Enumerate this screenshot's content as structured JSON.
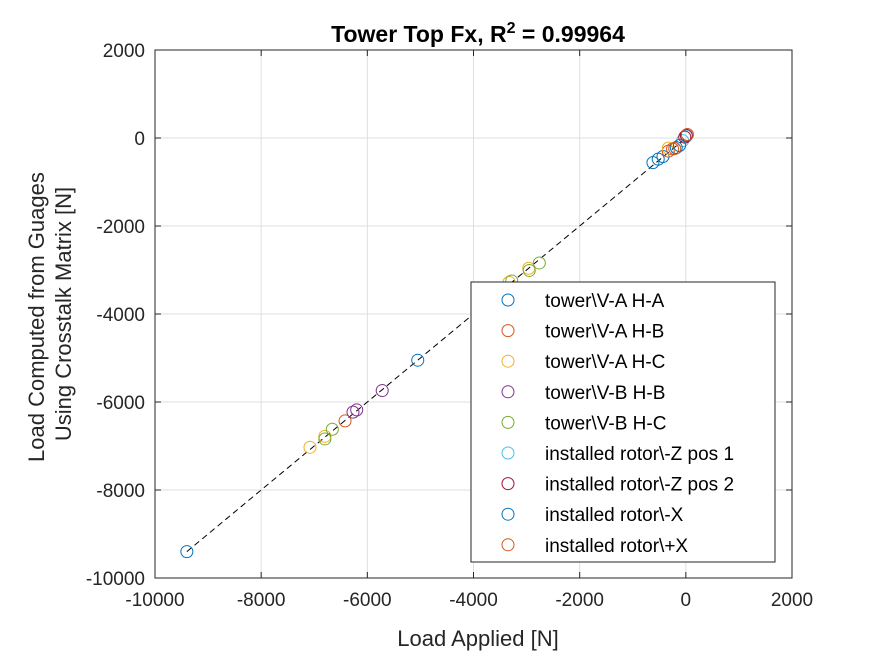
{
  "chart_data": {
    "type": "scatter",
    "title": "Tower Top Fx, R",
    "title_sup": "2",
    "title_suffix": " = 0.99964",
    "xlabel": "Load Applied [N]",
    "ylabel_line1": "Load Computed from Guages",
    "ylabel_line2": "Using Crosstalk Matrix [N]",
    "xlim": [
      -10000,
      2000
    ],
    "ylim": [
      -10000,
      2000
    ],
    "xticks": [
      -10000,
      -8000,
      -6000,
      -4000,
      -2000,
      0,
      2000
    ],
    "yticks": [
      -10000,
      -8000,
      -6000,
      -4000,
      -2000,
      0,
      2000
    ],
    "xtick_labels": [
      "-10000",
      "-8000",
      "-6000",
      "-4000",
      "-2000",
      "0",
      "2000"
    ],
    "ytick_labels": [
      "-10000",
      "-8000",
      "-6000",
      "-4000",
      "-2000",
      "0",
      "2000"
    ],
    "grid": true,
    "legend_position": "bottom-right",
    "fit_line": {
      "style": "dashed",
      "color": "#000000",
      "x": [
        -9400,
        0
      ],
      "y": [
        -9400,
        0
      ]
    },
    "series": [
      {
        "name": "tower\\V-A H-A",
        "color": "#0072BD",
        "points": [
          [
            -9400,
            -9400
          ],
          [
            -5050,
            -5050
          ],
          [
            -620,
            -560
          ],
          [
            -520,
            -480
          ],
          [
            -430,
            -420
          ]
        ]
      },
      {
        "name": "tower\\V-A H-B",
        "color": "#D95319",
        "points": [
          [
            -6420,
            -6430
          ],
          [
            -250,
            -250
          ],
          [
            -330,
            -300
          ]
        ]
      },
      {
        "name": "tower\\V-A H-C",
        "color": "#EDB120",
        "points": [
          [
            -7080,
            -7030
          ],
          [
            -6800,
            -6780
          ],
          [
            -3330,
            -3280
          ],
          [
            -2960,
            -2960
          ],
          [
            -330,
            -230
          ]
        ]
      },
      {
        "name": "tower\\V-B H-B",
        "color": "#7E2F8E",
        "points": [
          [
            -6200,
            -6180
          ],
          [
            -6270,
            -6230
          ],
          [
            -5720,
            -5740
          ]
        ]
      },
      {
        "name": "tower\\V-B H-C",
        "color": "#77AC30",
        "points": [
          [
            -6660,
            -6620
          ],
          [
            -6800,
            -6840
          ],
          [
            -3280,
            -3250
          ],
          [
            -2950,
            -3010
          ],
          [
            -2760,
            -2840
          ]
        ]
      },
      {
        "name": "installed rotor\\-Z pos 1",
        "color": "#4DBEEE",
        "points": [
          [
            -60,
            -60
          ],
          [
            10,
            40
          ]
        ]
      },
      {
        "name": "installed rotor\\-Z pos 2",
        "color": "#A2142F",
        "points": [
          [
            10,
            60
          ],
          [
            -20,
            20
          ]
        ]
      },
      {
        "name": "installed rotor\\-X",
        "color": "#0072BD",
        "points": [
          [
            -180,
            -220
          ],
          [
            -120,
            -170
          ]
        ]
      },
      {
        "name": "installed rotor\\+X",
        "color": "#D95319",
        "points": [
          [
            -210,
            -240
          ],
          [
            30,
            80
          ]
        ]
      }
    ]
  }
}
